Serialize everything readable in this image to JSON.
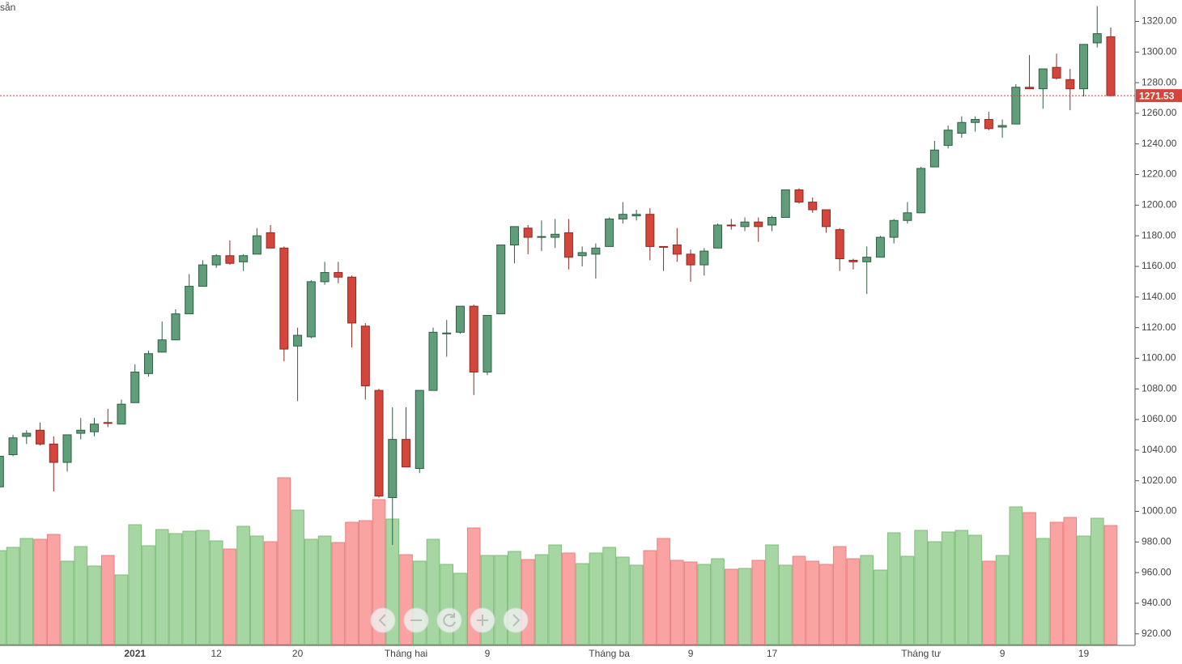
{
  "chart_data": {
    "type": "candlestick",
    "corner_text": "sẵn",
    "categories": [
      null,
      null,
      null,
      null,
      null,
      null,
      null,
      null,
      null,
      null,
      "2021",
      null,
      null,
      null,
      null,
      null,
      "12",
      null,
      null,
      null,
      null,
      null,
      "20",
      null,
      null,
      null,
      null,
      null,
      null,
      null,
      "Tháng hai",
      null,
      null,
      null,
      null,
      null,
      "9",
      null,
      null,
      null,
      null,
      null,
      null,
      null,
      null,
      "Tháng ba",
      null,
      null,
      null,
      null,
      null,
      "9",
      null,
      null,
      null,
      null,
      null,
      "17",
      null,
      null,
      null,
      null,
      null,
      null,
      null,
      null,
      null,
      null,
      "Tháng tư",
      null,
      null,
      null,
      null,
      null,
      "9",
      null,
      null,
      null,
      null,
      null,
      "19",
      null,
      null
    ],
    "open": [
      1016,
      1037,
      1049,
      1053,
      1044,
      1032,
      1051,
      1052,
      1058,
      1057,
      1071,
      1090,
      1104,
      1112,
      1129,
      1147,
      1161,
      1167,
      1163,
      1168,
      1182,
      1172,
      1108,
      1114,
      1150,
      1156,
      1153,
      1121,
      1079,
      1009,
      1047,
      1028,
      1079,
      1116,
      1117,
      1134,
      1091,
      1129,
      1174,
      1185,
      1179,
      1179,
      1182,
      1167,
      1168,
      1173,
      1191,
      1193,
      1194,
      1173,
      1174,
      1168,
      1161,
      1172,
      1187,
      1186,
      1189,
      1187,
      1192,
      1210,
      1202,
      1197,
      1184,
      1164,
      1163,
      1166,
      1179,
      1190,
      1195,
      1225,
      1239,
      1247,
      1254,
      1256,
      1251,
      1253,
      1277,
      1276,
      1290,
      1282,
      1276,
      1306,
      1310
    ],
    "high": [
      1037,
      1050,
      1053,
      1058,
      1049,
      1050,
      1061,
      1061,
      1067,
      1073,
      1096,
      1105,
      1124,
      1132,
      1155,
      1164,
      1168,
      1177,
      1168,
      1185,
      1187,
      1173,
      1120,
      1151,
      1163,
      1163,
      1154,
      1123,
      1080,
      1068,
      1068,
      1079,
      1120,
      1125,
      1134,
      1135,
      1128,
      1174,
      1186,
      1187,
      1190,
      1191,
      1191,
      1173,
      1175,
      1192,
      1202,
      1197,
      1198,
      1173,
      1185,
      1171,
      1172,
      1188,
      1191,
      1192,
      1192,
      1193,
      1210,
      1211,
      1205,
      1197,
      1185,
      1165,
      1173,
      1180,
      1191,
      1202,
      1225,
      1242,
      1252,
      1258,
      1258,
      1261,
      1256,
      1279,
      1298,
      1289,
      1299,
      1289,
      1305,
      1330,
      1316
    ],
    "low": [
      1015,
      1036,
      1044,
      1043,
      1013,
      1026,
      1047,
      1049,
      1055,
      1057,
      1071,
      1088,
      1104,
      1112,
      1129,
      1147,
      1159,
      1161,
      1157,
      1168,
      1172,
      1098,
      1072,
      1113,
      1148,
      1149,
      1107,
      1073,
      1009,
      978,
      1029,
      1025,
      1079,
      1101,
      1116,
      1076,
      1089,
      1129,
      1162,
      1168,
      1170,
      1172,
      1158,
      1160,
      1152,
      1173,
      1188,
      1190,
      1164,
      1157,
      1163,
      1150,
      1154,
      1172,
      1184,
      1183,
      1176,
      1183,
      1192,
      1201,
      1195,
      1182,
      1157,
      1158,
      1142,
      1166,
      1175,
      1188,
      1195,
      1225,
      1237,
      1244,
      1248,
      1249,
      1244,
      1253,
      1276,
      1263,
      1282,
      1262,
      1271,
      1303,
      1271
    ],
    "close": [
      1036,
      1048,
      1051,
      1044,
      1032,
      1050,
      1053,
      1057,
      1057.5,
      1070,
      1091,
      1103,
      1112,
      1129,
      1147,
      1161,
      1167,
      1162,
      1167,
      1180,
      1172,
      1106,
      1115,
      1150,
      1156,
      1153,
      1123,
      1082,
      1010,
      1047,
      1029,
      1079,
      1117,
      1116.5,
      1134,
      1091,
      1128,
      1174,
      1186,
      1179,
      1179.5,
      1181,
      1166,
      1169,
      1172,
      1191,
      1194,
      1194,
      1173,
      1172.5,
      1168,
      1161,
      1170,
      1187,
      1186.5,
      1189,
      1186,
      1192,
      1210,
      1202,
      1197,
      1186,
      1165,
      1163,
      1166,
      1179,
      1190,
      1195,
      1224,
      1236,
      1249,
      1254,
      1256,
      1250,
      1252,
      1277,
      1276,
      1289,
      1283,
      1276,
      1305,
      1312,
      1271.53
    ],
    "volume": [
      116,
      120,
      131,
      130,
      136,
      103,
      121,
      97,
      110,
      86,
      148,
      122,
      142,
      137,
      140,
      141,
      128,
      118,
      146,
      134,
      127,
      206,
      166,
      130,
      134,
      126,
      151,
      153,
      179,
      155,
      111,
      103,
      130,
      99,
      88,
      144,
      110,
      110,
      115,
      105,
      111,
      123,
      113,
      100,
      113,
      120,
      108,
      98,
      116,
      131,
      104,
      102,
      99,
      106,
      93,
      94,
      104,
      123,
      98,
      109,
      103,
      99,
      121,
      106,
      110,
      92,
      138,
      109,
      141,
      127,
      139,
      141,
      135,
      103,
      110,
      170,
      163,
      131,
      151,
      157,
      134,
      156,
      147
    ],
    "up_color": "#5f9e78",
    "down_color": "#d4463b",
    "volume_up_color": "#a6d7a2",
    "volume_down_color": "#f9a3a3",
    "last_price": 1271.53,
    "ylim": [
      913,
      1334
    ],
    "yticks": [
      {
        "value": 920,
        "label": "920.00"
      },
      {
        "value": 940,
        "label": "940.00"
      },
      {
        "value": 960,
        "label": "960.00"
      },
      {
        "value": 980,
        "label": "980.00"
      },
      {
        "value": 1000,
        "label": "1000.00"
      },
      {
        "value": 1020,
        "label": "1020.00"
      },
      {
        "value": 1040,
        "label": "1040.00"
      },
      {
        "value": 1060,
        "label": "1060.00"
      },
      {
        "value": 1080,
        "label": "1080.00"
      },
      {
        "value": 1100,
        "label": "1100.00"
      },
      {
        "value": 1120,
        "label": "1120.00"
      },
      {
        "value": 1140,
        "label": "1140.00"
      },
      {
        "value": 1160,
        "label": "1160.00"
      },
      {
        "value": 1180,
        "label": "1180.00"
      },
      {
        "value": 1200,
        "label": "1200.00"
      },
      {
        "value": 1220,
        "label": "1220.00"
      },
      {
        "value": 1240,
        "label": "1240.00"
      },
      {
        "value": 1260,
        "label": "1260.00"
      },
      {
        "value": 1280,
        "label": "1280.00"
      },
      {
        "value": 1300,
        "label": "1300.00"
      },
      {
        "value": 1320,
        "label": "1320.00"
      }
    ],
    "grid": false
  }
}
